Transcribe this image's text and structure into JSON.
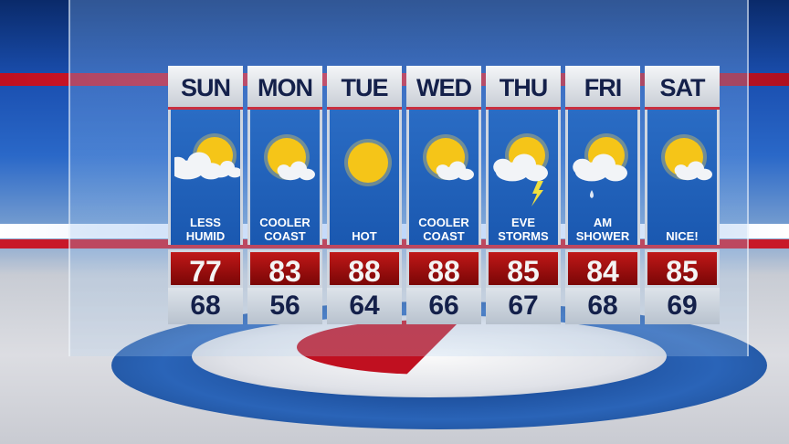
{
  "forecast": [
    {
      "day": "SUN",
      "icon": "partly-cloudy-icon",
      "condition": [
        "LESS",
        "HUMID"
      ],
      "high": "77",
      "low": "68"
    },
    {
      "day": "MON",
      "icon": "mostly-sunny-icon",
      "condition": [
        "COOLER",
        "COAST"
      ],
      "high": "83",
      "low": "56"
    },
    {
      "day": "TUE",
      "icon": "sunny-icon",
      "condition": [
        "",
        "HOT"
      ],
      "high": "88",
      "low": "64"
    },
    {
      "day": "WED",
      "icon": "mostly-sunny-icon",
      "condition": [
        "COOLER",
        "COAST"
      ],
      "high": "88",
      "low": "66"
    },
    {
      "day": "THU",
      "icon": "thunderstorm-icon",
      "condition": [
        "EVE",
        "STORMS"
      ],
      "high": "85",
      "low": "67"
    },
    {
      "day": "FRI",
      "icon": "shower-icon",
      "condition": [
        "AM",
        "SHOWER"
      ],
      "high": "84",
      "low": "68"
    },
    {
      "day": "SAT",
      "icon": "mostly-sunny-icon",
      "condition": [
        "",
        "NICE!"
      ],
      "high": "85",
      "low": "69"
    }
  ],
  "colors": {
    "high_bg": "#a01010",
    "low_text": "#14204a",
    "panel": "#2266bb",
    "sun": "#f5c518"
  }
}
